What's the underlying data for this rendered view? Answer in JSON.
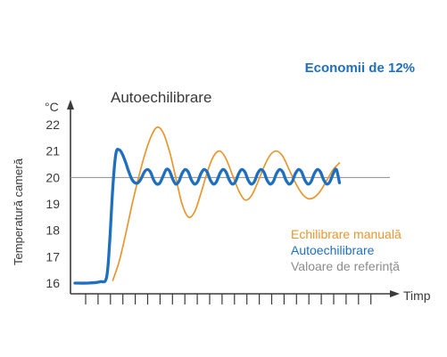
{
  "headline": "Economii de 12%",
  "chart_data": {
    "type": "line",
    "title": "Autoechilibrare",
    "unit_label": "°C",
    "ylabel": "Temperatură cameră",
    "xlabel": "Timp",
    "ylim": [
      16,
      22
    ],
    "yticks": [
      "22",
      "21",
      "20",
      "19",
      "18",
      "17",
      "16"
    ],
    "xlim": [
      0,
      100
    ],
    "grid": false,
    "legend_position": "right",
    "reference": {
      "name": "Valoare de referință",
      "value": 20,
      "color": "#8c8c8c"
    },
    "series": [
      {
        "name": "Echilibrare manuală",
        "color": "#e8962e",
        "x": [
          12,
          14,
          16,
          18,
          20,
          22,
          24,
          26,
          28,
          30,
          32,
          34,
          36,
          38,
          40,
          42,
          44,
          46,
          48,
          50,
          52,
          54,
          56,
          58,
          60,
          62,
          64,
          66,
          68,
          70,
          72,
          74,
          76,
          78,
          80,
          82,
          84
        ],
        "y": [
          16.1,
          16.8,
          17.8,
          18.9,
          19.9,
          20.8,
          21.5,
          21.9,
          21.7,
          21.0,
          20.0,
          19.0,
          18.5,
          18.7,
          19.4,
          20.2,
          20.8,
          21.0,
          20.7,
          20.1,
          19.5,
          19.15,
          19.3,
          19.8,
          20.4,
          20.85,
          21.0,
          20.8,
          20.3,
          19.8,
          19.4,
          19.2,
          19.25,
          19.5,
          19.9,
          20.3,
          20.55
        ]
      },
      {
        "name": "Autoechilibrare",
        "color": "#1f6fbf",
        "x": [
          0,
          4,
          8,
          10,
          11,
          12,
          13,
          14,
          15,
          16,
          17,
          18,
          19,
          20,
          21,
          22,
          23,
          24,
          25,
          26,
          27,
          28,
          29,
          30,
          31,
          32,
          33,
          34,
          35,
          36,
          37,
          38,
          39,
          40,
          41,
          42,
          43,
          44,
          45,
          46,
          47,
          48,
          49,
          50,
          51,
          52,
          53,
          54,
          55,
          56,
          57,
          58,
          59,
          60,
          61,
          62,
          63,
          64,
          65,
          66,
          67,
          68,
          69,
          70,
          71,
          72,
          73,
          74,
          75,
          76,
          77,
          78,
          79,
          80,
          81,
          82,
          83,
          84
        ],
        "y": [
          16.0,
          16.0,
          16.05,
          16.2,
          17.5,
          19.6,
          20.9,
          21.05,
          20.9,
          20.6,
          20.25,
          19.95,
          19.8,
          19.8,
          19.95,
          20.2,
          20.3,
          20.2,
          19.9,
          19.75,
          19.8,
          20.05,
          20.3,
          20.25,
          19.95,
          19.75,
          19.85,
          20.15,
          20.3,
          20.2,
          19.9,
          19.75,
          19.85,
          20.15,
          20.3,
          20.2,
          19.9,
          19.75,
          19.85,
          20.15,
          20.3,
          20.2,
          19.9,
          19.75,
          19.85,
          20.15,
          20.3,
          20.2,
          19.9,
          19.75,
          19.85,
          20.15,
          20.3,
          20.2,
          19.9,
          19.75,
          19.85,
          20.15,
          20.3,
          20.2,
          19.9,
          19.75,
          19.85,
          20.15,
          20.3,
          20.2,
          19.9,
          19.75,
          19.85,
          20.15,
          20.3,
          20.2,
          19.9,
          19.75,
          19.85,
          20.15,
          20.3,
          19.8
        ]
      }
    ]
  },
  "colors": {
    "axis": "#3a3a3a",
    "headline": "#1f6fbf",
    "background": "#ffffff"
  }
}
